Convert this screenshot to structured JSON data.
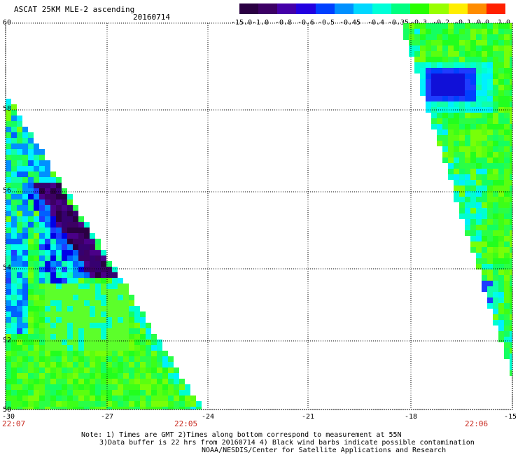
{
  "title": "ASCAT 25KM MLE-2 ascending",
  "date": "20160714",
  "colorbar": {
    "labels": [
      "-15.0",
      "-1.0",
      "-0.8",
      "-0.6",
      "-0.5",
      "-0.45",
      "-0.4",
      "-0.35",
      "-0.3",
      "-0.2",
      "-0.1",
      "0.0",
      "1.0"
    ],
    "colors": [
      "#2a0042",
      "#3c0064",
      "#4400a8",
      "#2200e0",
      "#0040ff",
      "#0090ff",
      "#00d8ff",
      "#00ffd8",
      "#00ff80",
      "#28ff00",
      "#98ff00",
      "#ffee00",
      "#ff8c00",
      "#ff2000"
    ]
  },
  "axes": {
    "lat_labels": [
      "60",
      "58",
      "56",
      "54",
      "52",
      "50"
    ],
    "lon_labels": [
      "-30",
      "-27",
      "-24",
      "-21",
      "-18",
      "-15"
    ],
    "lat_range": [
      50,
      60
    ],
    "lon_range": [
      -30,
      -15
    ]
  },
  "times": {
    "left": "22:07",
    "middle": "22:05",
    "right": "22:06"
  },
  "notes": {
    "line1": "Note: 1) Times are GMT 2)Times along bottom correspond to measurement at 55N",
    "line2": "3)Data buffer is 22 hrs from 20160714 4) Black wind barbs indicate possible contamination",
    "line3": "NOAA/NESDIS/Center for Satellite Applications and Research"
  },
  "map_style": {
    "grid_color": "#000000",
    "grid": "dotted",
    "background": "#ffffff"
  }
}
